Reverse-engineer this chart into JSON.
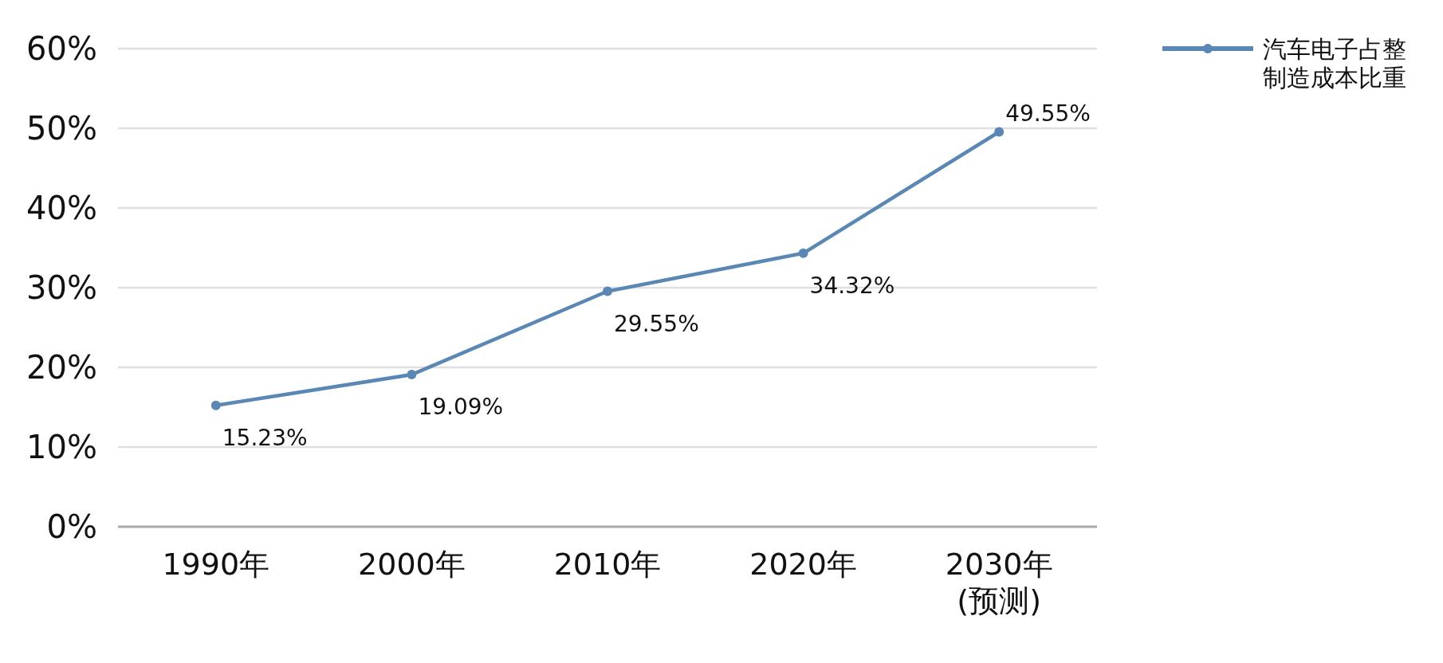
{
  "chart_data": {
    "type": "line",
    "categories": [
      "1990年",
      "2000年",
      "2010年",
      "2020年",
      "2030年\n(预测)"
    ],
    "series": [
      {
        "name": "汽车电子占整制造成本比重",
        "color": "#5b87b5",
        "values": [
          15.23,
          19.09,
          29.55,
          34.32,
          49.55
        ]
      }
    ],
    "value_labels": [
      "15.23%",
      "19.09%",
      "29.55%",
      "34.32%",
      "49.55%"
    ],
    "ylim": [
      0,
      60
    ],
    "yticks": [
      {
        "value": 0,
        "label": "0%"
      },
      {
        "value": 10,
        "label": "10%"
      },
      {
        "value": 20,
        "label": "20%"
      },
      {
        "value": 30,
        "label": "30%"
      },
      {
        "value": 40,
        "label": "40%"
      },
      {
        "value": 50,
        "label": "50%"
      },
      {
        "value": 60,
        "label": "60%"
      }
    ],
    "grid": "y",
    "legend": "top right",
    "marker": "circle",
    "line_style": "solid"
  }
}
